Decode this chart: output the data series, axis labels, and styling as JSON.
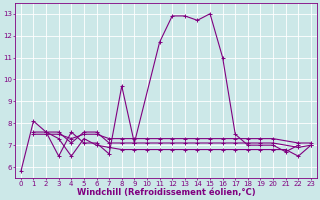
{
  "title": "",
  "xlabel": "Windchill (Refroidissement éolien,°C)",
  "background_color": "#cce8e8",
  "grid_color": "#ffffff",
  "line_color": "#800080",
  "xlim": [
    -0.5,
    23.5
  ],
  "ylim": [
    5.5,
    13.5
  ],
  "xticks": [
    0,
    1,
    2,
    3,
    4,
    5,
    6,
    7,
    8,
    9,
    10,
    11,
    12,
    13,
    14,
    15,
    16,
    17,
    18,
    19,
    20,
    21,
    22,
    23
  ],
  "yticks": [
    6,
    7,
    8,
    9,
    10,
    11,
    12,
    13
  ],
  "series": [
    [
      5.8,
      8.1,
      7.6,
      6.5,
      7.6,
      7.1,
      7.1,
      6.6,
      9.7,
      7.1,
      11.7,
      12.9,
      12.9,
      12.7,
      13.0,
      11.0,
      7.5,
      7.0,
      7.0,
      7.0,
      6.7,
      7.0
    ],
    [
      7.6,
      7.6,
      7.6,
      7.1,
      7.6,
      7.6,
      7.1,
      7.1,
      7.1,
      7.1,
      7.1,
      7.1,
      7.1,
      7.1,
      7.1,
      7.1,
      7.1,
      7.1,
      7.1,
      7.1,
      6.9,
      7.0
    ],
    [
      7.5,
      7.5,
      7.5,
      7.3,
      7.5,
      7.5,
      7.3,
      7.3,
      7.3,
      7.3,
      7.3,
      7.3,
      7.3,
      7.3,
      7.3,
      7.3,
      7.3,
      7.3,
      7.3,
      7.3,
      7.1,
      7.1
    ],
    [
      7.6,
      7.3,
      6.5,
      7.3,
      7.0,
      6.9,
      6.8,
      6.8,
      6.8,
      6.8,
      6.8,
      6.8,
      6.8,
      6.8,
      6.8,
      6.8,
      6.8,
      6.8,
      6.8,
      6.8,
      6.5,
      7.0
    ]
  ],
  "series_x": [
    [
      0,
      1,
      2,
      3,
      4,
      5,
      6,
      7,
      8,
      9,
      11,
      12,
      13,
      14,
      15,
      16,
      17,
      18,
      19,
      20,
      21,
      22
    ],
    [
      1,
      2,
      3,
      4,
      5,
      6,
      7,
      8,
      9,
      10,
      11,
      12,
      13,
      14,
      15,
      16,
      17,
      18,
      19,
      20,
      22,
      23
    ],
    [
      1,
      2,
      3,
      4,
      5,
      6,
      7,
      8,
      9,
      10,
      11,
      12,
      13,
      14,
      15,
      16,
      17,
      18,
      19,
      20,
      22,
      23
    ],
    [
      2,
      3,
      4,
      5,
      6,
      7,
      8,
      9,
      10,
      11,
      12,
      13,
      14,
      15,
      16,
      17,
      18,
      19,
      20,
      21,
      22,
      23
    ]
  ],
  "marker": "+",
  "markersize": 3,
  "linewidth": 0.8,
  "tick_fontsize": 5,
  "xlabel_fontsize": 6
}
